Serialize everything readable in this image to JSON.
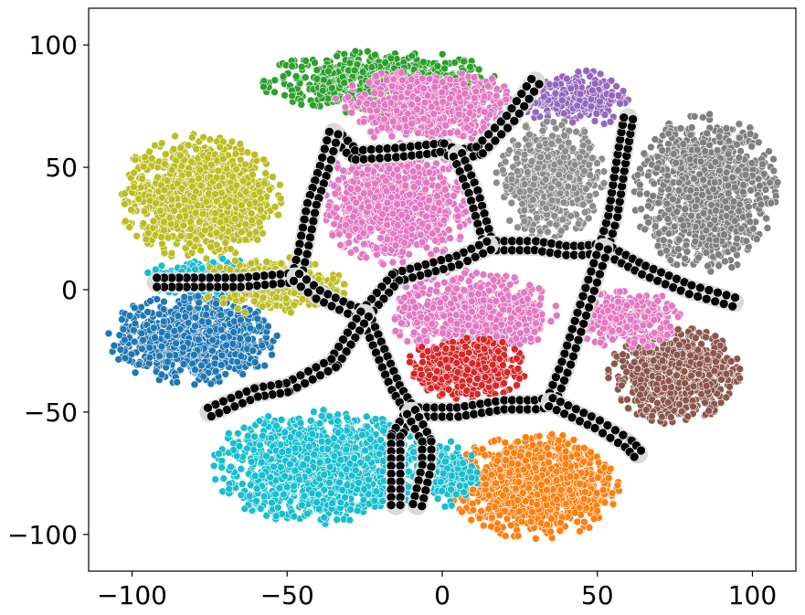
{
  "chart_data": {
    "type": "scatter",
    "title": "",
    "xlabel": "",
    "ylabel": "",
    "xlim": [
      -114,
      114
    ],
    "ylim": [
      -115,
      115
    ],
    "xticks": [
      -100,
      -50,
      0,
      50,
      100
    ],
    "xtick_labels": [
      "−100",
      "−50",
      "0",
      "50",
      "100"
    ],
    "yticks": [
      -100,
      -50,
      0,
      50,
      100
    ],
    "ytick_labels": [
      "−100",
      "−50",
      "0",
      "50",
      "100"
    ],
    "grid": false,
    "legend": "none",
    "point_edge_color": "#ffffff",
    "clusters": [
      {
        "color": "#2ca02c",
        "cx": -20,
        "cy": 85,
        "rx": 40,
        "ry": 13,
        "n": 700
      },
      {
        "color": "#e377c2",
        "cx": -5,
        "cy": 75,
        "rx": 30,
        "ry": 16,
        "n": 650
      },
      {
        "color": "#9467bd",
        "cx": 43,
        "cy": 78,
        "rx": 18,
        "ry": 12,
        "n": 250
      },
      {
        "color": "#bcbd22",
        "cx": -78,
        "cy": 38,
        "rx": 27,
        "ry": 26,
        "n": 1100
      },
      {
        "color": "#e377c2",
        "cx": -15,
        "cy": 35,
        "rx": 26,
        "ry": 25,
        "n": 900
      },
      {
        "color": "#8c8c8c",
        "cx": 35,
        "cy": 45,
        "rx": 18,
        "ry": 25,
        "n": 600
      },
      {
        "color": "#7f7f7f",
        "cx": 85,
        "cy": 40,
        "rx": 24,
        "ry": 33,
        "n": 1100
      },
      {
        "color": "#1f77b4",
        "cx": -80,
        "cy": -20,
        "rx": 28,
        "ry": 19,
        "n": 900
      },
      {
        "color": "#17becf",
        "cx": -75,
        "cy": 5,
        "rx": 22,
        "ry": 8,
        "n": 250
      },
      {
        "color": "#bcbd22",
        "cx": -55,
        "cy": 2,
        "rx": 25,
        "ry": 12,
        "n": 300
      },
      {
        "color": "#e377c2",
        "cx": 10,
        "cy": -10,
        "rx": 28,
        "ry": 18,
        "n": 650
      },
      {
        "color": "#d62728",
        "cx": 8,
        "cy": -32,
        "rx": 20,
        "ry": 13,
        "n": 600
      },
      {
        "color": "#8c564b",
        "cx": 75,
        "cy": -35,
        "rx": 22,
        "ry": 20,
        "n": 800
      },
      {
        "color": "#e377c2",
        "cx": 60,
        "cy": -12,
        "rx": 18,
        "ry": 12,
        "n": 300
      },
      {
        "color": "#17becf",
        "cx": -40,
        "cy": -72,
        "rx": 35,
        "ry": 24,
        "n": 1300
      },
      {
        "color": "#ff7f0e",
        "cx": 30,
        "cy": -80,
        "rx": 28,
        "ry": 22,
        "n": 1000
      },
      {
        "color": "#17becf",
        "cx": 0,
        "cy": -75,
        "rx": 12,
        "ry": 14,
        "n": 200
      }
    ],
    "boundaries": {
      "color": "#000000",
      "paths": [
        [
          [
            -35,
            64
          ],
          [
            -28,
            55
          ],
          [
            -15,
            56
          ],
          [
            0,
            58
          ],
          [
            5,
            55
          ]
        ],
        [
          [
            5,
            55
          ],
          [
            12,
            57
          ],
          [
            22,
            70
          ],
          [
            30,
            85
          ]
        ],
        [
          [
            5,
            55
          ],
          [
            10,
            40
          ],
          [
            15,
            18
          ]
        ],
        [
          [
            15,
            18
          ],
          [
            30,
            18
          ],
          [
            40,
            16
          ],
          [
            45,
            16
          ],
          [
            52,
            17
          ]
        ],
        [
          [
            52,
            17
          ],
          [
            55,
            30
          ],
          [
            58,
            55
          ],
          [
            60,
            70
          ]
        ],
        [
          [
            52,
            17
          ],
          [
            65,
            8
          ],
          [
            80,
            0
          ],
          [
            94,
            -5
          ]
        ],
        [
          [
            -35,
            64
          ],
          [
            -38,
            50
          ],
          [
            -42,
            35
          ],
          [
            -45,
            15
          ],
          [
            -47,
            5
          ]
        ],
        [
          [
            -47,
            5
          ],
          [
            -65,
            3
          ],
          [
            -80,
            3
          ],
          [
            -92,
            3
          ]
        ],
        [
          [
            -47,
            5
          ],
          [
            -40,
            -2
          ],
          [
            -30,
            -8
          ],
          [
            -25,
            -10
          ]
        ],
        [
          [
            15,
            18
          ],
          [
            5,
            12
          ],
          [
            -15,
            5
          ],
          [
            -25,
            -10
          ]
        ],
        [
          [
            -25,
            -10
          ],
          [
            -20,
            -25
          ],
          [
            -15,
            -40
          ],
          [
            -10,
            -50
          ]
        ],
        [
          [
            -25,
            -10
          ],
          [
            -35,
            -30
          ],
          [
            -50,
            -40
          ],
          [
            -60,
            -42
          ],
          [
            -75,
            -50
          ]
        ],
        [
          [
            -10,
            -50
          ],
          [
            -15,
            -60
          ],
          [
            -15,
            -72
          ],
          [
            -15,
            -88
          ]
        ],
        [
          [
            -10,
            -50
          ],
          [
            5,
            -50
          ],
          [
            20,
            -47
          ],
          [
            30,
            -47
          ],
          [
            35,
            -46
          ]
        ],
        [
          [
            35,
            -46
          ],
          [
            40,
            -30
          ],
          [
            45,
            -10
          ],
          [
            52,
            17
          ]
        ],
        [
          [
            35,
            -46
          ],
          [
            50,
            -55
          ],
          [
            60,
            -63
          ],
          [
            63,
            -67
          ]
        ],
        [
          [
            -10,
            -50
          ],
          [
            -5,
            -62
          ],
          [
            -5,
            -72
          ],
          [
            -8,
            -88
          ]
        ]
      ]
    }
  }
}
